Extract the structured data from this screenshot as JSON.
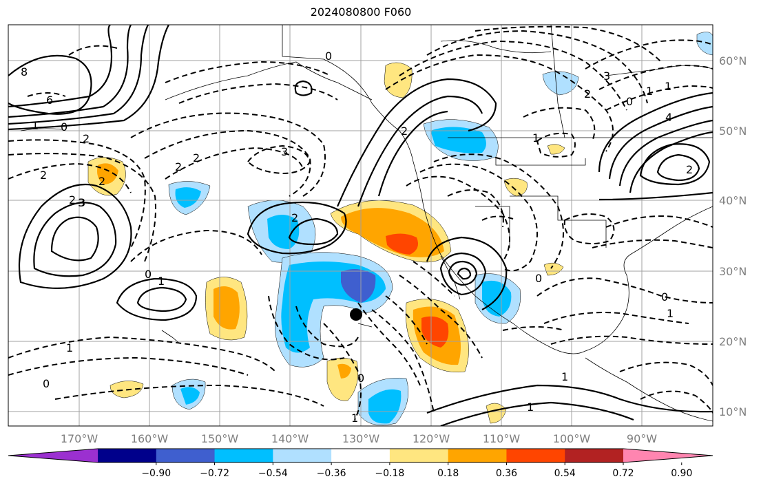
{
  "title": "2024080800 F060",
  "latitude_labels": [
    "60°N",
    "50°N",
    "40°N",
    "30°N",
    "20°N",
    "10°N"
  ],
  "longitude_labels": [
    "170°W",
    "160°W",
    "150°W",
    "140°W",
    "130°W",
    "120°W",
    "110°W",
    "100°W",
    "90°W"
  ],
  "colorbar": {
    "tick_labels": [
      "−0.90",
      "−0.72",
      "−0.54",
      "−0.36",
      "−0.18",
      "0.18",
      "0.36",
      "0.54",
      "0.72",
      "0.90"
    ],
    "colors": [
      "#9b30d0",
      "#00008b",
      "#3f5fcf",
      "#00bfff",
      "#b0e0ff",
      "#ffffff",
      "#ffe680",
      "#ffa500",
      "#ff4500",
      "#b22222",
      "#ff85b0"
    ]
  },
  "contour_labels": {
    "solid": [
      "8",
      "6",
      "1",
      "2",
      "3",
      "2",
      "0",
      "1",
      "2",
      "1",
      "4",
      "2",
      "3"
    ],
    "dashed": [
      "0",
      "2",
      "2",
      "2",
      "3",
      "2",
      "0",
      "3",
      "2",
      "1",
      "1",
      "0",
      "1",
      "0",
      "1",
      "0",
      "1",
      "0",
      "1",
      "1",
      "2",
      "0"
    ]
  },
  "marker": "center-dot"
}
